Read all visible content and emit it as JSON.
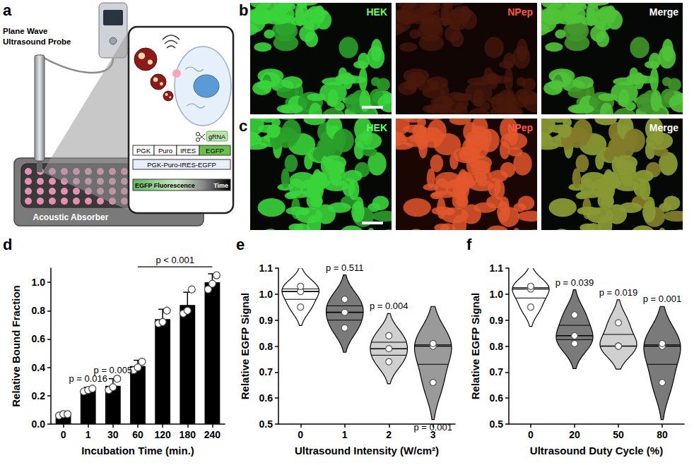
{
  "panels": [
    {
      "label": "a",
      "type": "diagram",
      "probe": "Plane Wave Ultrasound Probe",
      "absorber": "Acoustic Absorber",
      "gRNA": "gRNA",
      "construct": [
        "PGK",
        "Puro",
        "IRES",
        "EGFP"
      ],
      "plasmid": "PGK-Puro-IRES-EGFP",
      "gradient": {
        "start": "EGFP Fluorescence",
        "end": "Time"
      }
    },
    {
      "label": "b",
      "type": "micrographs",
      "channels": [
        "HEK",
        "NPep",
        "Merge"
      ]
    },
    {
      "label": "c",
      "type": "micrographs",
      "channels": [
        "HEK",
        "NPep",
        "Merge"
      ]
    }
  ],
  "chart_data": [
    {
      "panel_label": "d",
      "type": "bar",
      "categories": [
        "0",
        "1",
        "30",
        "60",
        "120",
        "180",
        "240"
      ],
      "values": [
        0.07,
        0.24,
        0.27,
        0.41,
        0.74,
        0.84,
        1.0
      ],
      "errors": [
        0.01,
        0.02,
        0.05,
        0.04,
        0.07,
        0.09,
        0.06
      ],
      "points": [
        [
          0.06,
          0.07,
          0.07
        ],
        [
          0.23,
          0.24,
          0.25
        ],
        [
          0.24,
          0.26,
          0.32
        ],
        [
          0.38,
          0.4,
          0.44
        ],
        [
          0.71,
          0.72,
          0.8
        ],
        [
          0.78,
          0.8,
          0.95
        ],
        [
          0.95,
          0.99,
          1.05
        ]
      ],
      "color": "#000000",
      "xlabel": "Incubation Time (min.)",
      "ylabel": "Relative Bound Fraction",
      "ylim": [
        0,
        1.1
      ],
      "yticks": [
        {
          "value": 0,
          "label": "0.0"
        },
        0.2,
        0.4,
        0.6,
        0.8,
        {
          "value": 1,
          "label": "1.0"
        }
      ],
      "grid": false,
      "annotations": [
        {
          "text": "p = 0.016",
          "category": "1"
        },
        {
          "text": "p = 0.005",
          "category": "30"
        },
        {
          "text": "p < 0.001",
          "from": "60",
          "to": "240"
        }
      ]
    },
    {
      "panel_label": "e",
      "type": "violin",
      "categories": [
        "0",
        "1",
        "2",
        "3"
      ],
      "values": [
        [
          0.95,
          1.01,
          1.03
        ],
        [
          0.87,
          0.93,
          0.98
        ],
        [
          0.74,
          0.79,
          0.84
        ],
        [
          0.66,
          0.8,
          0.81
        ]
      ],
      "colors": [
        "#ffffff",
        "#7a7a7a",
        "#d0d0d0",
        "#9a9a9a"
      ],
      "xlabel": "Ultrasound Intensity (W/cm²)",
      "ylabel": "Relative EGFP Signal",
      "ylim": [
        0.5,
        1.1
      ],
      "yticks": [
        0.5,
        0.6,
        0.7,
        0.8,
        0.9,
        {
          "value": 1,
          "label": "1.0"
        },
        1.1
      ],
      "grid": false,
      "annotations": [
        {
          "text": "p = 0.511",
          "category": "1",
          "position": "above"
        },
        {
          "text": "p = 0.004",
          "category": "2",
          "position": "above"
        },
        {
          "text": "p = 0.001",
          "category": "3",
          "position": "below"
        }
      ]
    },
    {
      "panel_label": "f",
      "type": "violin",
      "categories": [
        "0",
        "20",
        "50",
        "80"
      ],
      "values": [
        [
          0.95,
          1.02,
          1.03
        ],
        [
          0.81,
          0.84,
          0.92
        ],
        [
          0.8,
          0.8,
          0.89
        ],
        [
          0.66,
          0.8,
          0.81
        ]
      ],
      "colors": [
        "#ffffff",
        "#7a7a7a",
        "#d0d0d0",
        "#7a7a7a"
      ],
      "xlabel": "Ultrasound Duty Cycle (%)",
      "ylabel": "Relative EGFP Signal",
      "ylim": [
        0.5,
        1.1
      ],
      "yticks": [
        0.5,
        0.6,
        0.7,
        0.8,
        0.9,
        {
          "value": 1,
          "label": "1.0"
        },
        1.1
      ],
      "grid": false,
      "annotations": [
        {
          "text": "p = 0.039",
          "category": "20",
          "position": "above"
        },
        {
          "text": "p = 0.019",
          "category": "50",
          "position": "above"
        },
        {
          "text": "p = 0.001",
          "category": "80",
          "position": "above"
        }
      ]
    }
  ]
}
